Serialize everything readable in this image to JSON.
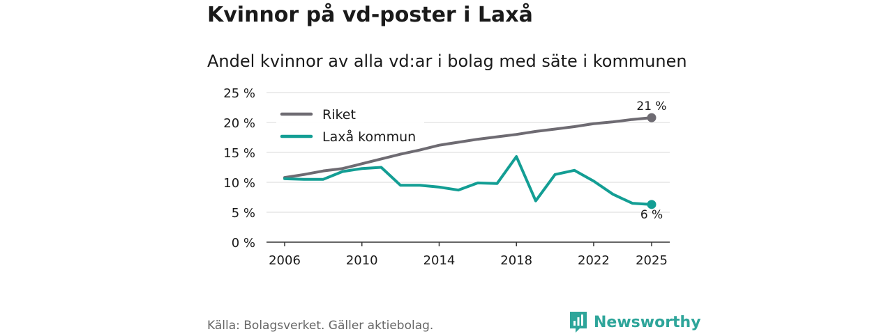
{
  "title": "Kvinnor på vd-poster i Laxå",
  "subtitle": "Andel kvinnor av alla vd:ar i bolag med säte i kommunen",
  "source": "Källa: Bolagsverket. Gäller aktiebolag.",
  "brand": {
    "name": "Newsworthy",
    "logo_icon": "newsworthy-logo-icon"
  },
  "colors": {
    "riket": "#6e6b72",
    "laxa": "#139e94",
    "grid": "#d9d9d9",
    "text": "#1a1a1a"
  },
  "chart_data": {
    "type": "line",
    "title": "Kvinnor på vd-poster i Laxå",
    "subtitle": "Andel kvinnor av alla vd:ar i bolag med säte i kommunen",
    "xlabel": "",
    "ylabel": "",
    "x": [
      2006,
      2007,
      2008,
      2009,
      2010,
      2011,
      2012,
      2013,
      2014,
      2015,
      2016,
      2017,
      2018,
      2019,
      2020,
      2021,
      2022,
      2023,
      2024,
      2025
    ],
    "x_ticks": [
      "2006",
      "2010",
      "2014",
      "2018",
      "2022",
      "2025"
    ],
    "y_ticks": [
      "0 %",
      "5 %",
      "10 %",
      "15 %",
      "20 %",
      "25 %"
    ],
    "ylim": [
      0,
      25
    ],
    "xlim": [
      2006,
      2025
    ],
    "grid": true,
    "legend_position": "top-left",
    "series": [
      {
        "name": "Riket",
        "values": [
          10.8,
          11.3,
          11.9,
          12.3,
          13.1,
          13.9,
          14.7,
          15.4,
          16.2,
          16.7,
          17.2,
          17.6,
          18.0,
          18.5,
          18.9,
          19.3,
          19.8,
          20.1,
          20.5,
          20.8
        ],
        "end_label": "21 %"
      },
      {
        "name": "Laxå kommun",
        "values": [
          10.6,
          10.5,
          10.5,
          11.8,
          12.3,
          12.5,
          9.5,
          9.5,
          9.2,
          8.7,
          9.9,
          9.8,
          14.3,
          6.9,
          11.3,
          12.0,
          10.2,
          8.0,
          6.5,
          6.3
        ],
        "end_label": "6 %"
      }
    ]
  }
}
